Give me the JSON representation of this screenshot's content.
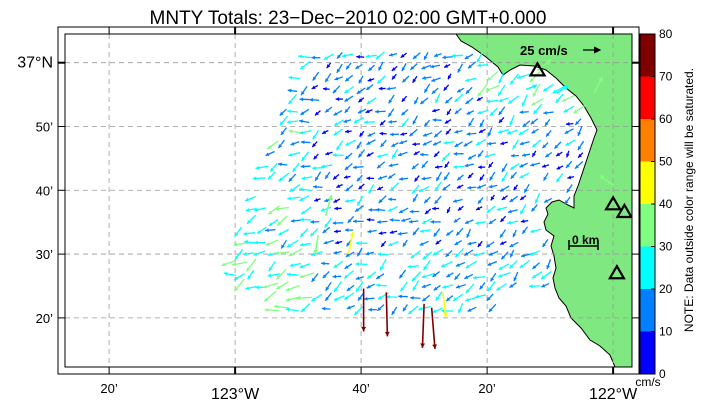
{
  "title": "MNTY Totals: 23−Dec−2010 02:00 GMT+0.000",
  "lat_labels": [
    {
      "text": "37°N",
      "lat": 37.0,
      "major": true
    },
    {
      "text": "50’",
      "lat": 36.8333,
      "major": false
    },
    {
      "text": "40’",
      "lat": 36.6667,
      "major": false
    },
    {
      "text": "30’",
      "lat": 36.5,
      "major": false
    },
    {
      "text": "20’",
      "lat": 36.3333,
      "major": false
    }
  ],
  "lon_labels": [
    {
      "text": "20’",
      "lon": -123.3333,
      "major": false
    },
    {
      "text": "123°W",
      "lon": -123.0,
      "major": true
    },
    {
      "text": "40’",
      "lon": -122.6667,
      "major": false
    },
    {
      "text": "20’",
      "lon": -122.3333,
      "major": false
    },
    {
      "text": "122°W",
      "lon": -122.0,
      "major": true
    }
  ],
  "extent": {
    "lon_min": -123.45,
    "lon_max": -121.95,
    "lat_min": 36.205,
    "lat_max": 37.075
  },
  "colorbar": {
    "ticks": [
      "0",
      "10",
      "20",
      "30",
      "40",
      "50",
      "60",
      "70",
      "80"
    ],
    "colors": [
      "#0000ff",
      "#0080ff",
      "#00ffff",
      "#80ff80",
      "#ffff00",
      "#ff8000",
      "#ff0000",
      "#800000"
    ],
    "unit": "cm/s",
    "note": "NOTE: Data outside color range will be saturated."
  },
  "scale_arrow_label": "25 cm/s",
  "distance_label": "0 km",
  "land_color": "#80e880",
  "sites": [
    {
      "lon": -122.2,
      "lat": 36.98
    },
    {
      "lon": -121.9,
      "lat": 36.82
    },
    {
      "lon": -122.0,
      "lat": 36.63
    },
    {
      "lon": -121.97,
      "lat": 36.61
    },
    {
      "lon": -121.99,
      "lat": 36.45
    }
  ],
  "vectors": [
    {
      "lon": -122.66,
      "lat": 36.41,
      "u": 0,
      "v": -78
    },
    {
      "lon": -122.6,
      "lat": 36.4,
      "u": 2,
      "v": -80
    },
    {
      "lon": -122.5,
      "lat": 36.37,
      "u": -3,
      "v": -80
    },
    {
      "lon": -122.48,
      "lat": 36.36,
      "u": 6,
      "v": -75
    },
    {
      "lon": -122.76,
      "lat": 36.6,
      "u": 10,
      "v": 38
    },
    {
      "lon": -122.78,
      "lat": 36.55,
      "u": -6,
      "v": -35
    },
    {
      "lon": -122.2,
      "lat": 36.98,
      "u": 25,
      "v": 20
    },
    {
      "lon": -122.23,
      "lat": 36.93,
      "u": 20,
      "v": 8
    },
    {
      "lon": -122.15,
      "lat": 36.92,
      "u": 22,
      "v": 14
    },
    {
      "lon": -122.0,
      "lat": 36.68,
      "u": -25,
      "v": 18
    },
    {
      "lon": -122.05,
      "lat": 36.92,
      "u": 15,
      "v": 30
    },
    {
      "lon": -122.45,
      "lat": 36.4,
      "u": 5,
      "v": -45
    },
    {
      "lon": -122.7,
      "lat": 36.5,
      "u": 8,
      "v": 40
    }
  ]
}
